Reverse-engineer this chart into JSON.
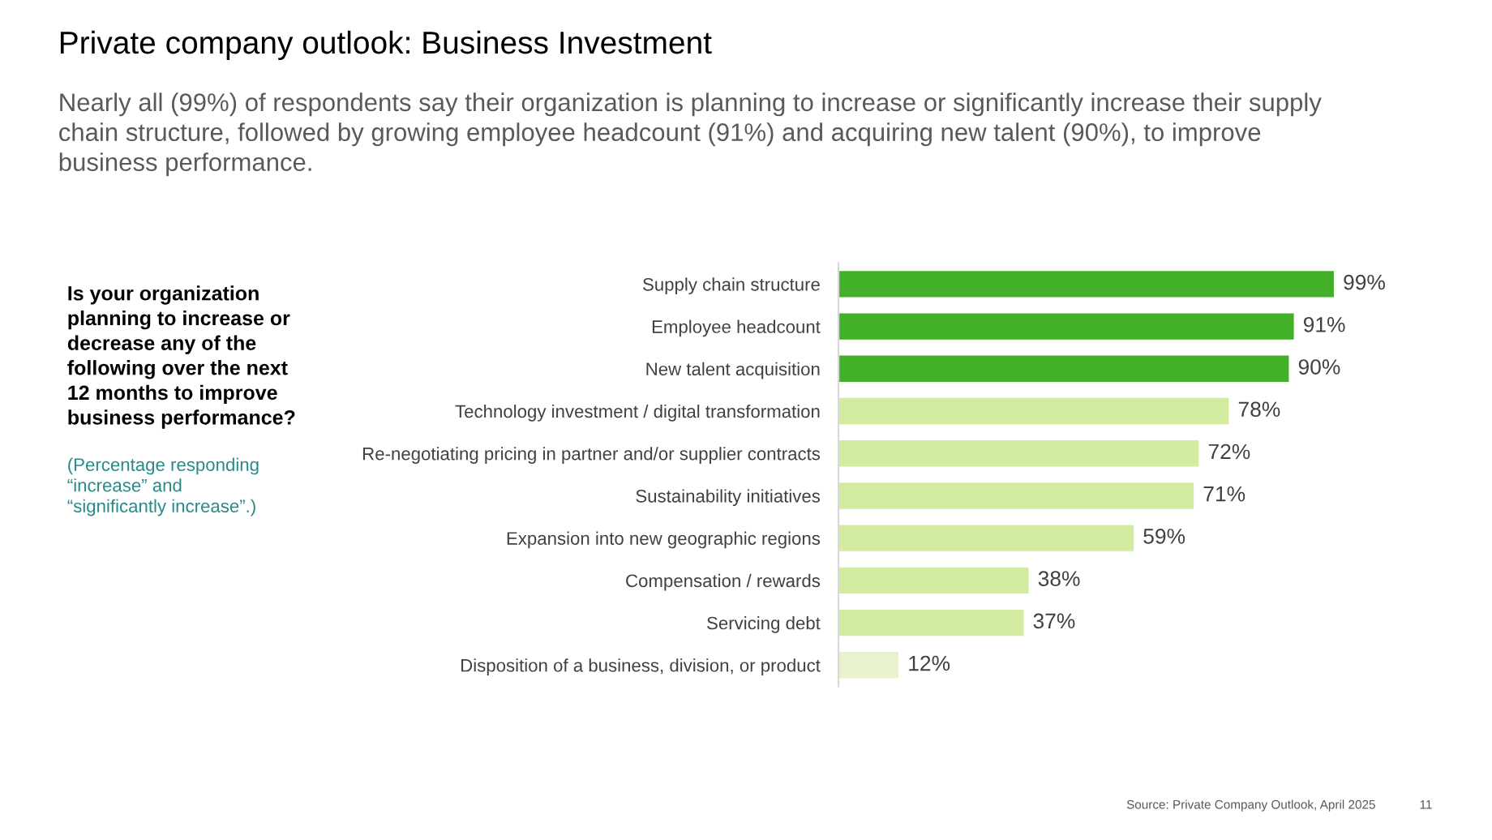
{
  "chart_data": {
    "type": "bar",
    "orientation": "horizontal",
    "title": "Private company outlook: Business Investment",
    "subtitle": "Nearly all (99%) of respondents say their organization is planning to increase or significantly increase their supply\nchain structure, followed by growing employee headcount (91%) and acquiring new talent (90%), to improve\nbusiness performance.",
    "categories": [
      "Supply chain structure",
      "Employee headcount",
      "New talent acquisition",
      "Technology investment / digital transformation",
      "Re-negotiating pricing in partner and/or supplier contracts",
      "Sustainability initiatives",
      "Expansion into new geographic regions",
      "Compensation / rewards",
      "Servicing debt",
      "Disposition of a business, division, or product"
    ],
    "values": [
      99,
      91,
      90,
      78,
      72,
      71,
      59,
      38,
      37,
      12
    ],
    "value_labels": [
      "99%",
      "91%",
      "90%",
      "78%",
      "72%",
      "71%",
      "59%",
      "38%",
      "37%",
      "12%"
    ],
    "colors": [
      "#43b02a",
      "#43b02a",
      "#43b02a",
      "#d2eb9e",
      "#d2eb9e",
      "#d2eb9e",
      "#d2eb9e",
      "#d2eb9e",
      "#d2eb9e",
      "#e6f3cc"
    ],
    "tick_labels": "y",
    "grid": false,
    "legend": false,
    "annotations": [
      "Is your organization\nplanning to increase or\ndecrease any of the\nfollowing over the next\n12 months to improve\nbusiness performance?",
      "(Percentage responding\n“increase” and\n“significantly increase”.)",
      "Source: Private Company Outlook, April 2025",
      "11"
    ]
  }
}
